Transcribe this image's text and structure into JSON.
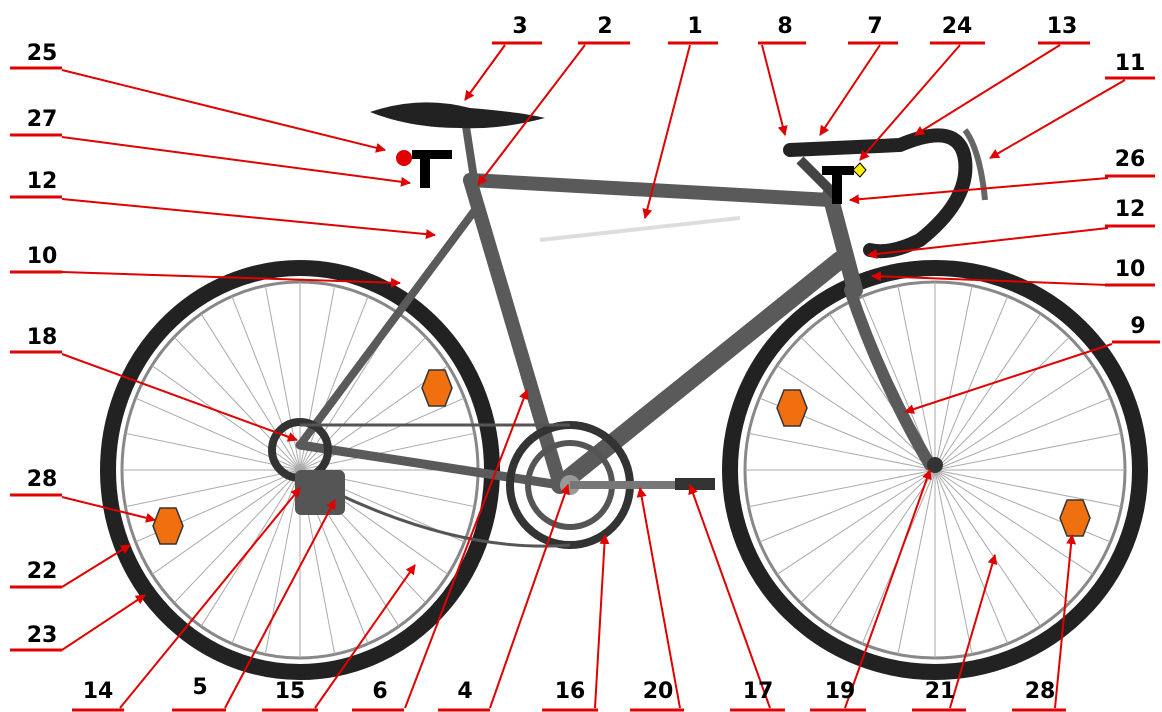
{
  "labels": [
    "3",
    "2",
    "1",
    "8",
    "7",
    "24",
    "13",
    "11",
    "26",
    "12",
    "10",
    "9",
    "25",
    "27",
    "12",
    "10",
    "18",
    "28",
    "22",
    "23",
    "14",
    "5",
    "15",
    "6",
    "4",
    "16",
    "20",
    "17",
    "19",
    "21",
    "28"
  ]
}
